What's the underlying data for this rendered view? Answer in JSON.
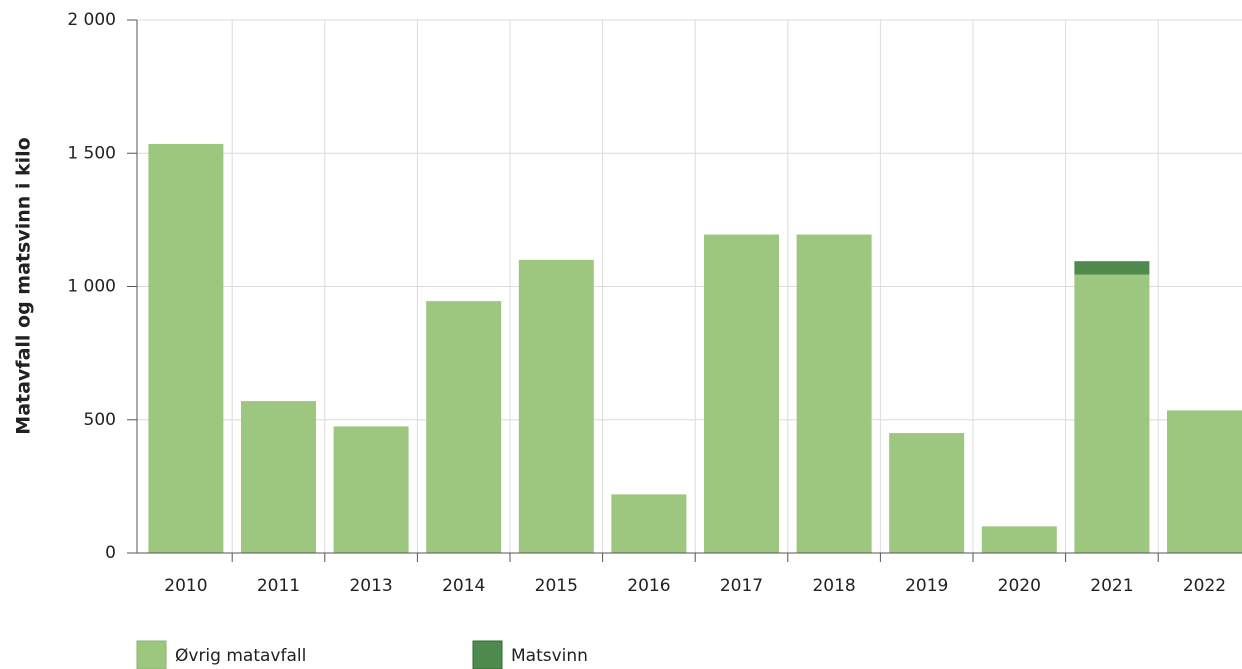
{
  "chart_data": {
    "type": "stacked_bar",
    "y_label": "Matavfall og matsvinn i kilo",
    "categories": [
      "2010",
      "2011",
      "2013",
      "2014",
      "2015",
      "2016",
      "2017",
      "2018",
      "2019",
      "2020",
      "2021",
      "2022"
    ],
    "series": [
      {
        "name": "Øvrig matavfall",
        "color": "#9dc67f",
        "values": [
          1535,
          570,
          475,
          945,
          1100,
          220,
          1195,
          1195,
          450,
          100,
          1045,
          535
        ]
      },
      {
        "name": "Matsvinn",
        "color": "#4e8a4e",
        "values": [
          0,
          0,
          0,
          0,
          0,
          0,
          0,
          0,
          0,
          0,
          50,
          0
        ]
      }
    ],
    "ylim": [
      0,
      2000
    ],
    "yticks": [
      0,
      500,
      {
        "value": 1000,
        "label": "1 000"
      },
      {
        "value": 1500,
        "label": "1 500"
      },
      {
        "value": 2000,
        "label": "2 000"
      }
    ],
    "grid": true,
    "legend": "bottom"
  }
}
